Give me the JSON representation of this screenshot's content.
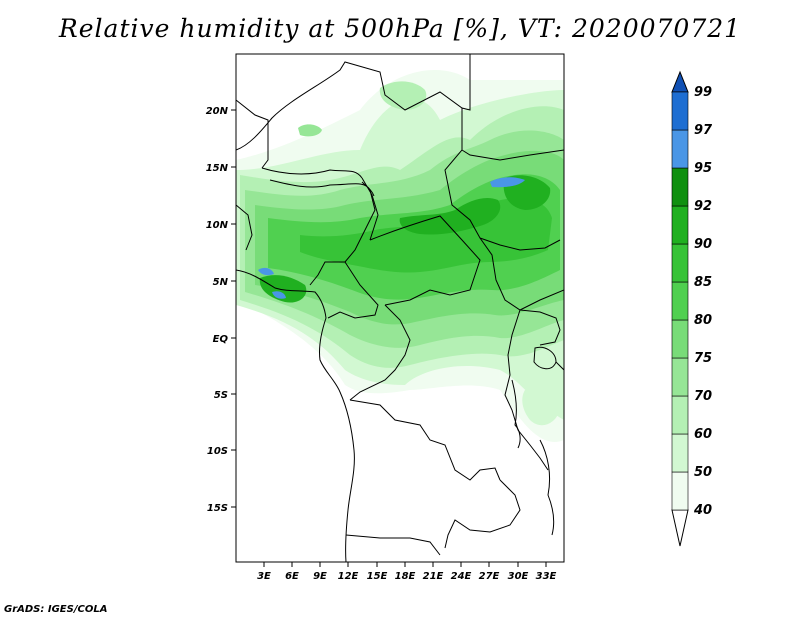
{
  "title": "Relative humidity at 500hPa [%], VT: 2020070721",
  "credit": "GrADS: IGES/COLA",
  "lat_labels": [
    "20N",
    "15N",
    "10N",
    "5N",
    "EQ",
    "5S",
    "10S",
    "15S"
  ],
  "lon_labels": [
    "3E",
    "6E",
    "9E",
    "12E",
    "15E",
    "18E",
    "21E",
    "24E",
    "27E",
    "30E",
    "33E"
  ],
  "colorbar": {
    "levels": [
      "40",
      "50",
      "60",
      "70",
      "75",
      "80",
      "85",
      "90",
      "92",
      "95",
      "97",
      "99"
    ],
    "colors": [
      "#f0fcf0",
      "#d2f8d2",
      "#b4f0b4",
      "#96e696",
      "#78dc78",
      "#50d050",
      "#37c337",
      "#20b020",
      "#109010",
      "#4a96e6",
      "#1e6ed2",
      "#1050b4"
    ]
  },
  "colors": {
    "land_line": "#000000",
    "water": "#3c8ce0"
  }
}
